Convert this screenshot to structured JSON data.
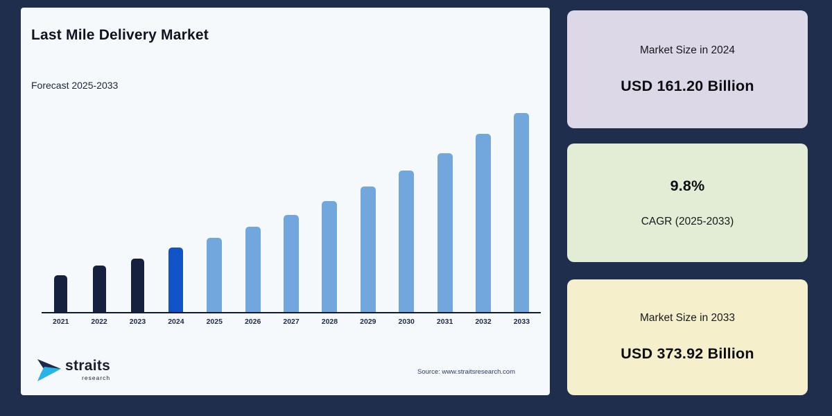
{
  "page": {
    "background": "#202e4e",
    "card_background": "#f6f9fb"
  },
  "chart_card": {
    "title": "Last Mile Delivery Market",
    "subtitle": "Forecast 2025-2033",
    "source": "Source: www.straitsresearch.com",
    "logo": {
      "name": "straits",
      "sub": "research",
      "mark_dark": "#1b2a4a",
      "mark_light": "#29b3e6"
    }
  },
  "chart_data": {
    "type": "bar",
    "title": "Last Mile Delivery Market",
    "xlabel": "",
    "ylabel": "",
    "unit": "USD Billion",
    "categories": [
      "2021",
      "2022",
      "2023",
      "2024",
      "2025",
      "2026",
      "2027",
      "2028",
      "2029",
      "2030",
      "2031",
      "2032",
      "2033"
    ],
    "values": [
      118,
      133,
      144,
      161.2,
      177.0,
      194.3,
      213.4,
      234.3,
      257.3,
      282.5,
      310.2,
      340.6,
      373.92
    ],
    "bar_roles": [
      "historical",
      "historical",
      "historical",
      "current",
      "forecast",
      "forecast",
      "forecast",
      "forecast",
      "forecast",
      "forecast",
      "forecast",
      "forecast",
      "forecast"
    ],
    "colors": {
      "historical": "#16213f",
      "current": "#1254c8",
      "forecast": "#72a7de",
      "axis": "#0f1b33",
      "tick_label": "#1d2945"
    },
    "bar_widths": {
      "historical": 19,
      "current": 21,
      "forecast": 22
    },
    "ylim": [
      60,
      380
    ],
    "grid": false,
    "legend": "none"
  },
  "stat_cards": [
    {
      "bg": "#ddd8e7",
      "lines": [
        {
          "text": "Market Size in 2024",
          "style": "label"
        },
        {
          "text": "USD 161.20 Billion",
          "style": "value"
        }
      ]
    },
    {
      "bg": "#e3edd6",
      "lines": [
        {
          "text": "9.8%",
          "style": "value"
        },
        {
          "text": "CAGR (2025-2033)",
          "style": "label"
        }
      ]
    },
    {
      "bg": "#f6efcb",
      "lines": [
        {
          "text": "Market Size in 2033",
          "style": "label"
        },
        {
          "text": "USD 373.92 Billion",
          "style": "value"
        }
      ]
    }
  ]
}
